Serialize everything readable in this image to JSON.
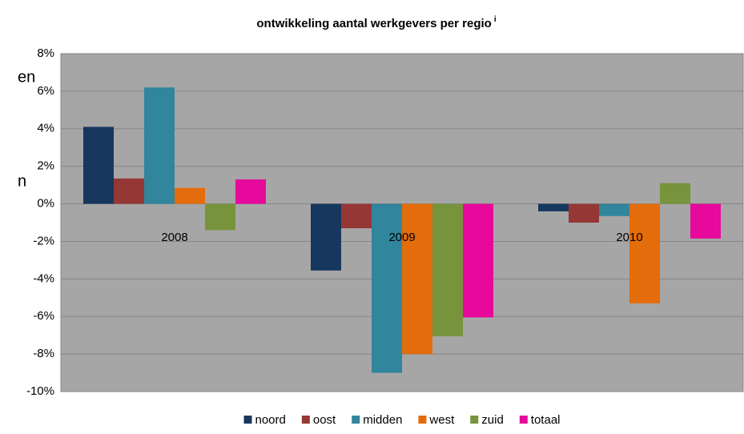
{
  "chart_data": {
    "type": "bar",
    "title": "ontwikkeling aantal werkgevers per regio",
    "title_note": "i",
    "annotations": [
      "en",
      "n"
    ],
    "categories": [
      "2008",
      "2009",
      "2010"
    ],
    "series": [
      {
        "name": "noord",
        "color": "#17375e",
        "values": [
          4.1,
          -3.55,
          -0.4
        ]
      },
      {
        "name": "oost",
        "color": "#953735",
        "values": [
          1.35,
          -1.3,
          -1.0
        ]
      },
      {
        "name": "midden",
        "color": "#31859c",
        "values": [
          6.2,
          -9.0,
          -0.65
        ]
      },
      {
        "name": "west",
        "color": "#e46c0a",
        "values": [
          0.85,
          -8.0,
          -5.3
        ]
      },
      {
        "name": "zuid",
        "color": "#77933c",
        "values": [
          -1.4,
          -7.05,
          1.1
        ]
      },
      {
        "name": "totaal",
        "color": "#e6099b",
        "values": [
          1.3,
          -6.05,
          -1.85
        ]
      }
    ],
    "ylim": [
      -10,
      8
    ],
    "yticks": [
      {
        "value": -10,
        "label": "-10%"
      },
      {
        "value": -8,
        "label": "-8%"
      },
      {
        "value": -6,
        "label": "-6%"
      },
      {
        "value": -4,
        "label": "-4%"
      },
      {
        "value": -2,
        "label": "-2%"
      },
      {
        "value": 0,
        "label": "0%"
      },
      {
        "value": 2,
        "label": "2%"
      },
      {
        "value": 4,
        "label": "4%"
      },
      {
        "value": 6,
        "label": "6%"
      },
      {
        "value": 8,
        "label": "8%"
      }
    ],
    "grid": true,
    "legend": "bottom"
  }
}
